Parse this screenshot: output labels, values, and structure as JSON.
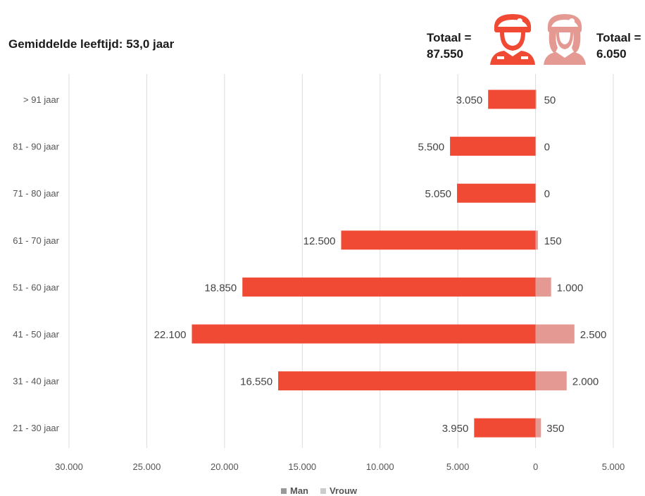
{
  "chart_data": {
    "type": "bar",
    "orientation": "horizontal-population-pyramid",
    "subtitle": "Gemiddelde leeftijd: 53,0 jaar",
    "totals": [
      {
        "label": "Totaal =",
        "value": "87.550"
      },
      {
        "label": "Totaal =",
        "value": "6.050"
      }
    ],
    "categories": [
      "> 91 jaar",
      "81 - 90 jaar",
      "71 - 80 jaar",
      "61 - 70 jaar",
      "51 - 60 jaar",
      "41 - 50 jaar",
      "31 - 40 jaar",
      "21 - 30 jaar"
    ],
    "series": [
      {
        "name": "Man",
        "color": "#f04a35",
        "values": [
          3050,
          5500,
          5050,
          12500,
          18850,
          22100,
          16550,
          3950
        ],
        "labels": [
          "3.050",
          "5.500",
          "5.050",
          "12.500",
          "18.850",
          "22.100",
          "16.550",
          "3.950"
        ]
      },
      {
        "name": "Vrouw",
        "color": "#e49a92",
        "values": [
          50,
          0,
          0,
          150,
          1000,
          2500,
          2000,
          350
        ],
        "labels": [
          "50",
          "0",
          "0",
          "150",
          "1.000",
          "2.500",
          "2.000",
          "350"
        ]
      }
    ],
    "xlim": [
      -30000,
      5000
    ],
    "xticks": [
      -30000,
      -25000,
      -20000,
      -15000,
      -10000,
      -5000,
      0,
      5000
    ],
    "xtick_labels": [
      "30.000",
      "25.000",
      "20.000",
      "15.000",
      "10.000",
      "5.000",
      "0",
      "5.000"
    ],
    "grid": "vertical",
    "legend": "bottom-center",
    "legend_colors": {
      "Man": "#999999",
      "Vrouw": "#cccccc"
    }
  },
  "icons": {
    "man": "soldier-male-icon",
    "woman": "soldier-female-icon"
  }
}
